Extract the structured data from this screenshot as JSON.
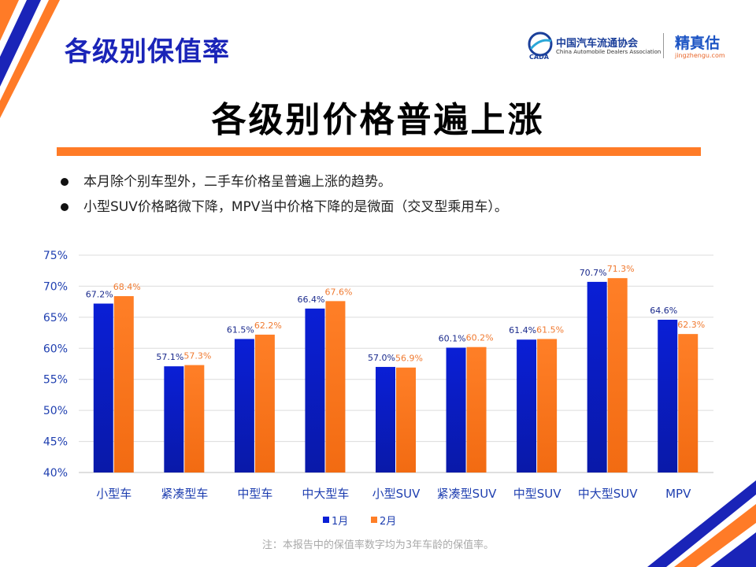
{
  "header": {
    "title": "各级别保值率"
  },
  "logos": {
    "cada_name": "中国汽车流通协会",
    "cada_en": "China Automobile Dealers Association",
    "cada_abbr": "CADA",
    "jzg_name": "精真估",
    "jzg_url": "jingzhengu.com"
  },
  "main_title": "各级别价格普遍上涨",
  "bullets": [
    "本月除个别车型外，二手车价格呈普遍上涨的趋势。",
    "小型SUV价格略微下降，MPV当中价格下降的是微面（交叉型乘用车）。"
  ],
  "colors": {
    "series_1": "#0a1fd6",
    "series_2": "#ff7f27",
    "title_blue": "#1a24b8",
    "accent_orange": "#ff7b27",
    "label_1": "#1a2a8c",
    "label_2": "#f07a30",
    "axis_text": "#1f3fb0"
  },
  "chart_data": {
    "type": "bar",
    "categories": [
      "小型车",
      "紧凑型车",
      "中型车",
      "中大型车",
      "小型SUV",
      "紧凑型SUV",
      "中型SUV",
      "中大型SUV",
      "MPV"
    ],
    "series": [
      {
        "name": "1月",
        "values": [
          67.2,
          57.1,
          61.5,
          66.4,
          57.0,
          60.1,
          61.4,
          70.7,
          64.6
        ]
      },
      {
        "name": "2月",
        "values": [
          68.4,
          57.3,
          62.2,
          67.6,
          56.9,
          60.2,
          61.5,
          71.3,
          62.3
        ]
      }
    ],
    "ylim": [
      40,
      75
    ],
    "yticks": [
      40,
      45,
      50,
      55,
      60,
      65,
      70,
      75
    ],
    "ytick_format": "%",
    "data_label_format": "0.0%",
    "grid": true,
    "legend": "bottom-center"
  },
  "footnote": "注：本报告中的保值率数字均为3年车龄的保值率。"
}
